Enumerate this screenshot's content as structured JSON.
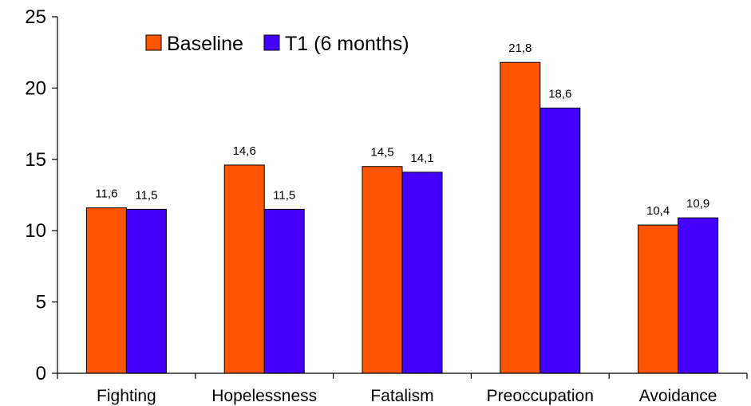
{
  "chart_data": {
    "type": "bar",
    "title": "",
    "xlabel": "",
    "ylabel": "",
    "categories": [
      "Fighting",
      "Hopelessness",
      "Fatalism",
      "Preoccupation",
      "Avoidance"
    ],
    "series": [
      {
        "name": "Baseline",
        "color": "#ff5500",
        "values": [
          11.6,
          14.6,
          14.5,
          21.8,
          10.4
        ],
        "labels": [
          "11,6",
          "14,6",
          "14,5",
          "21,8",
          "10,4"
        ]
      },
      {
        "name": "T1 (6 months)",
        "color": "#4400ff",
        "values": [
          11.5,
          11.5,
          14.1,
          18.6,
          10.9
        ],
        "labels": [
          "11,5",
          "11,5",
          "14,1",
          "18,6",
          "10,9"
        ]
      }
    ],
    "ylim": [
      0,
      25
    ],
    "yticks": [
      0,
      5,
      10,
      15,
      20,
      25
    ],
    "ytick_labels": [
      "0",
      "5",
      "10",
      "15",
      "20",
      "25"
    ],
    "grid": false,
    "legend_position": "top-left"
  }
}
